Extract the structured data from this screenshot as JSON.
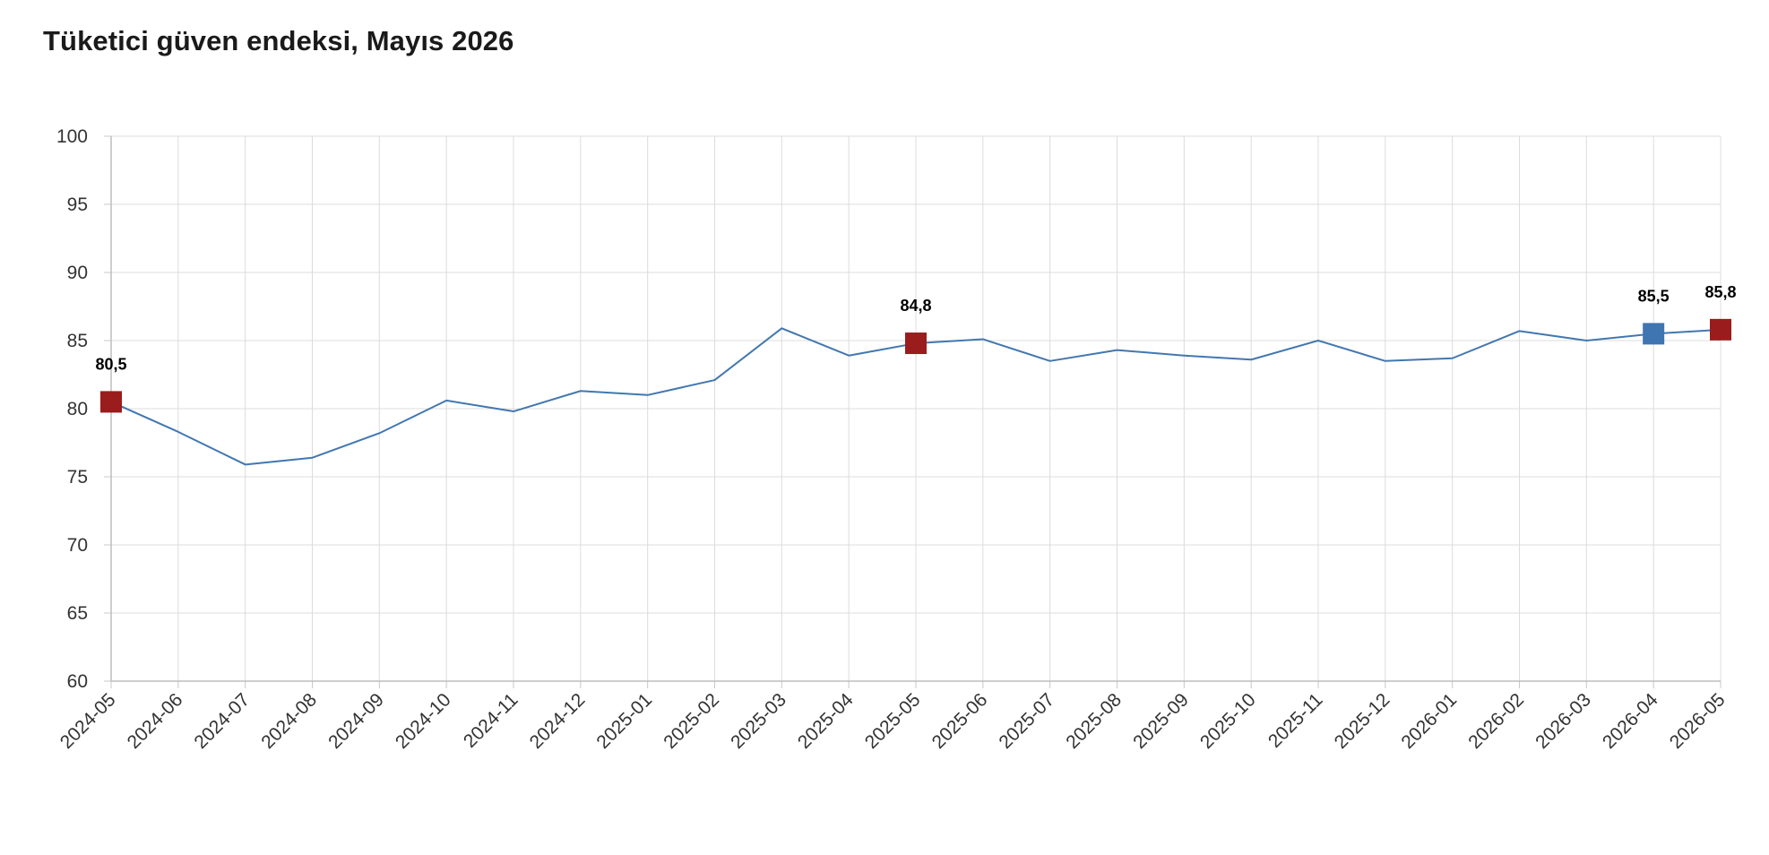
{
  "title": "Tüketici güven endeksi, Mayıs 2026",
  "chart_data": {
    "type": "line",
    "title": "Tüketici güven endeksi, Mayıs 2026",
    "xlabel": "",
    "ylabel": "",
    "x": [
      "2024-05",
      "2024-06",
      "2024-07",
      "2024-08",
      "2024-09",
      "2024-10",
      "2024-11",
      "2024-12",
      "2025-01",
      "2025-02",
      "2025-03",
      "2025-04",
      "2025-05",
      "2025-06",
      "2025-07",
      "2025-08",
      "2025-09",
      "2025-10",
      "2025-11",
      "2025-12",
      "2026-01",
      "2026-02",
      "2026-03",
      "2026-04",
      "2026-05"
    ],
    "series": [
      {
        "values": [
          80.5,
          78.3,
          75.9,
          76.4,
          78.2,
          80.6,
          79.8,
          81.3,
          81.0,
          82.1,
          85.9,
          83.9,
          84.8,
          85.1,
          83.5,
          84.3,
          83.9,
          83.6,
          85.0,
          83.5,
          83.7,
          85.7,
          85.0,
          85.5,
          85.8
        ],
        "color": "#4277b0"
      }
    ],
    "ylim": [
      60,
      100
    ],
    "yticks": [
      60,
      65,
      70,
      75,
      80,
      85,
      90,
      95,
      100
    ],
    "grid": true,
    "legend": "none",
    "highlights": [
      {
        "index": 0,
        "label": "80,5",
        "color": "#9b1c1c"
      },
      {
        "index": 12,
        "label": "84,8",
        "color": "#9b1c1c"
      },
      {
        "index": 23,
        "label": "85,5",
        "color": "#3f75b1"
      },
      {
        "index": 24,
        "label": "85,8",
        "color": "#9b1c1c"
      }
    ]
  }
}
